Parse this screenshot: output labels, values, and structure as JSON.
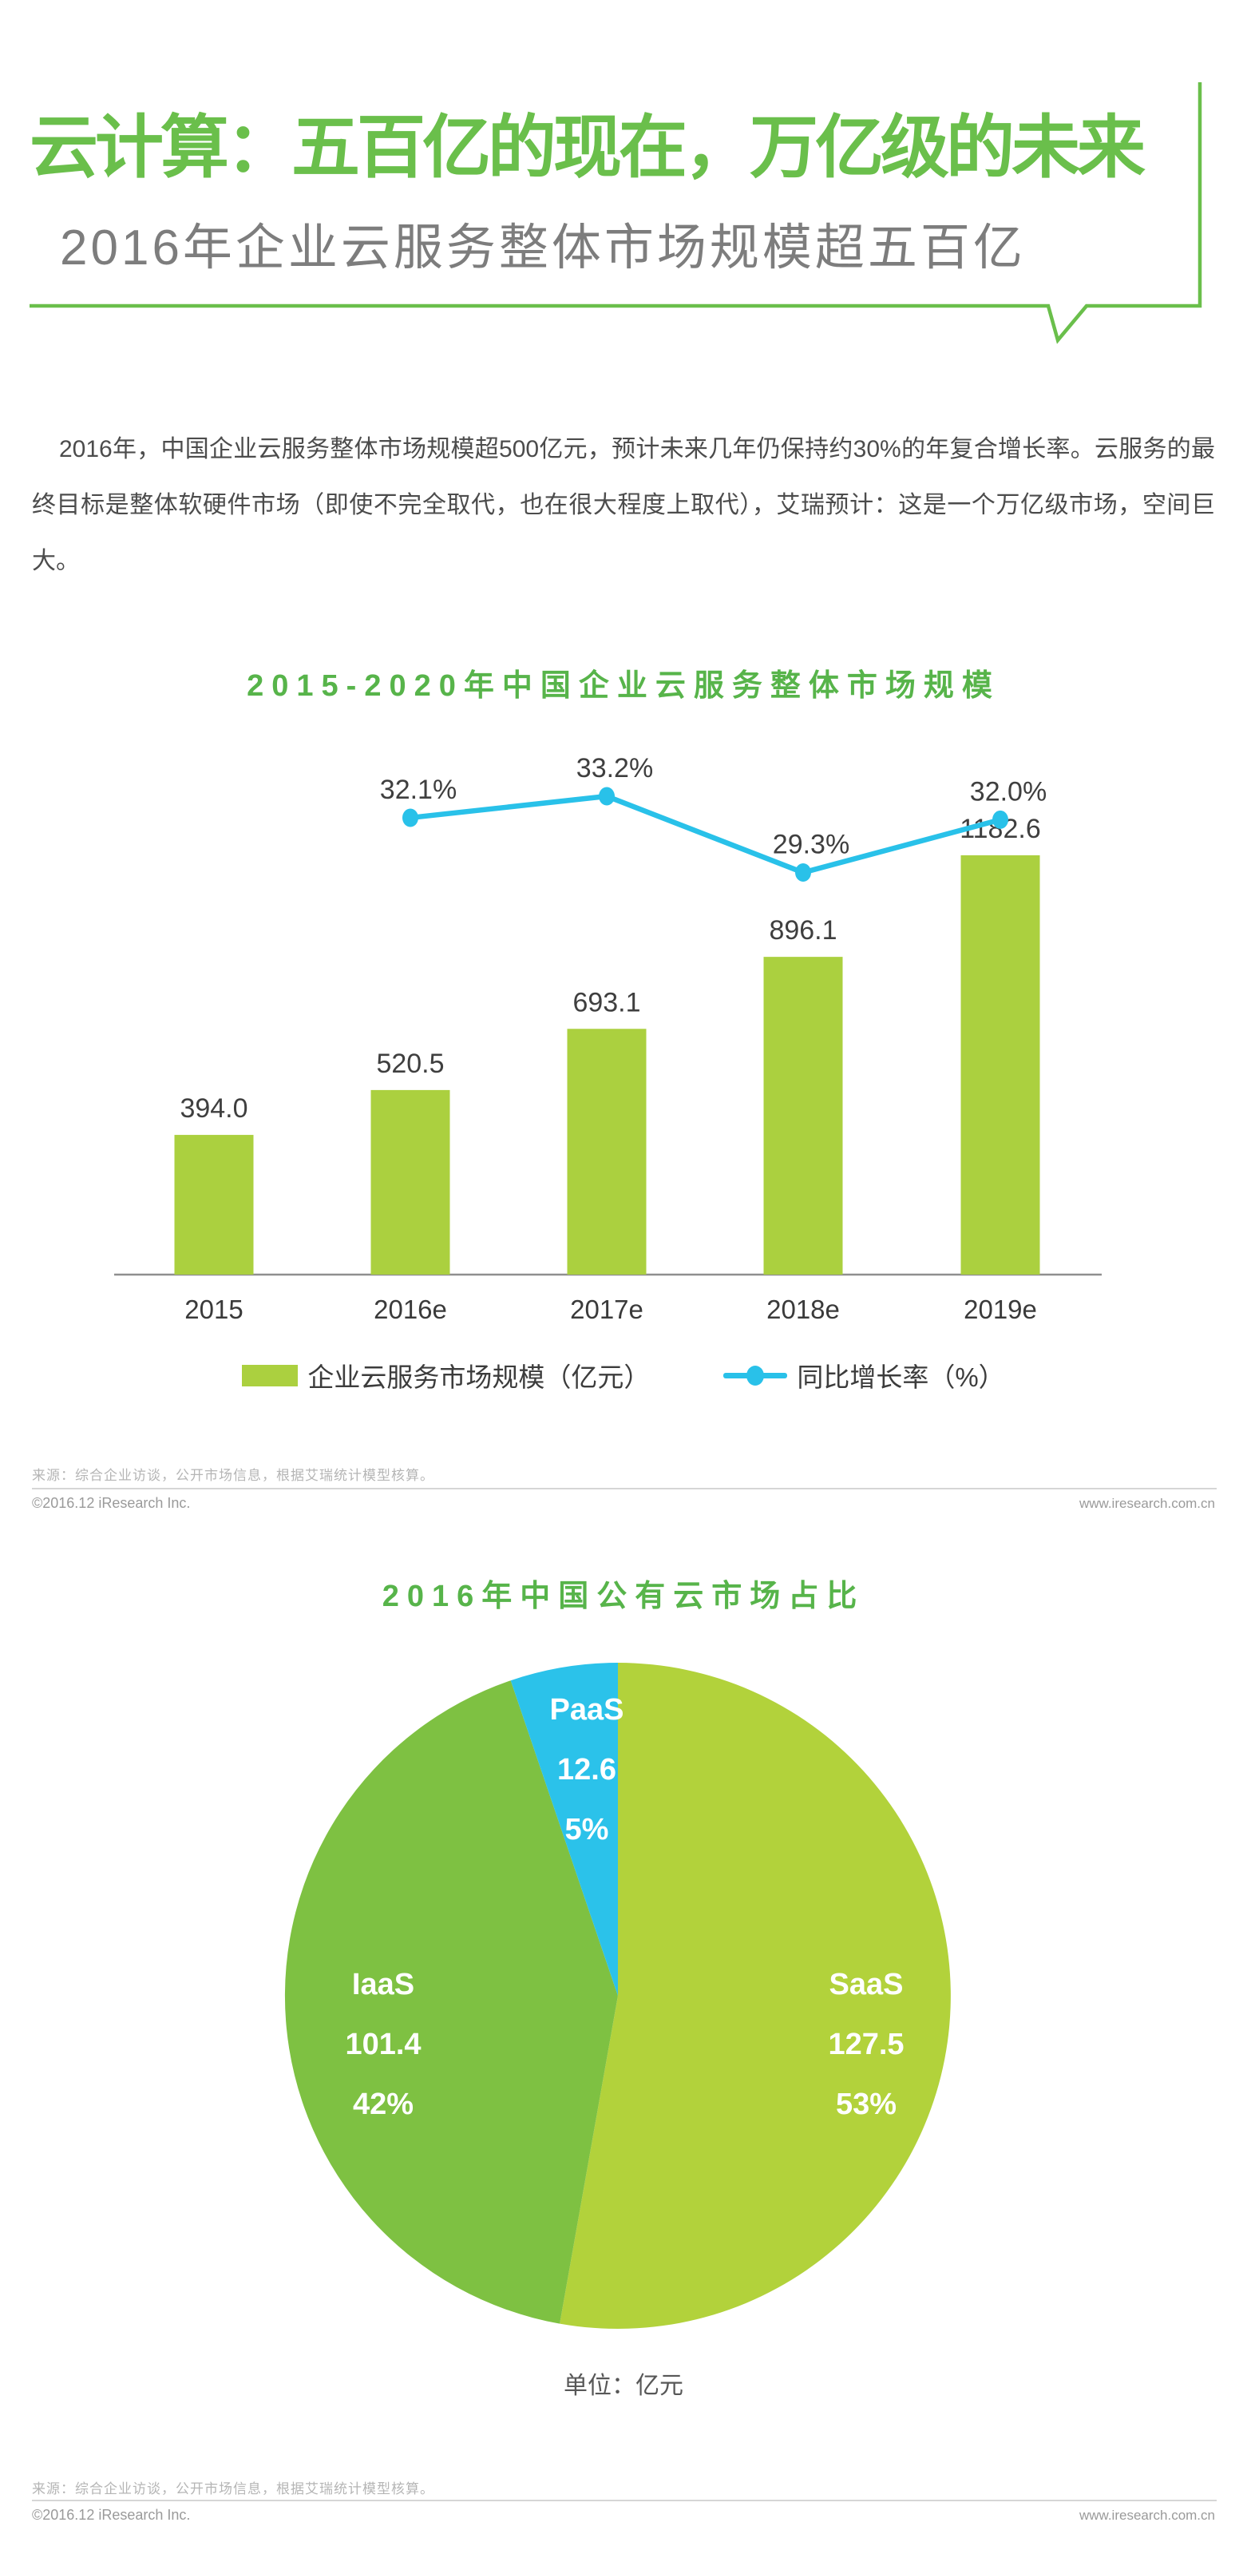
{
  "header": {
    "title": "云计算：五百亿的现在，万亿级的未来",
    "subtitle": "2016年企业云服务整体市场规模超五百亿"
  },
  "intro": {
    "text": "2016年，中国企业云服务整体市场规模超500亿元，预计未来几年仍保持约30%的年复合增长率。云服务的最终目标是整体软硬件市场（即使不完全取代，也在很大程度上取代），艾瑞预计：这是一个万亿级市场，空间巨大。"
  },
  "colors": {
    "header_green": "#6abf4b",
    "chart_title_green": "#57b44a",
    "axis_gray": "#8f8f8f"
  },
  "chart_data": [
    {
      "type": "bar",
      "title": "2015-2020年中国企业云服务整体市场规模",
      "categories": [
        "2015",
        "2016e",
        "2017e",
        "2018e",
        "2019e"
      ],
      "series": [
        {
          "name": "企业云服务市场规模（亿元）",
          "kind": "bar",
          "values": [
            394.0,
            520.5,
            693.1,
            896.1,
            1182.6
          ],
          "labels": [
            "394.0",
            "520.5",
            "693.1",
            "896.1",
            "1182.6"
          ],
          "color": "#abd03f"
        },
        {
          "name": "同比增长率（%）",
          "kind": "line",
          "values": [
            null,
            32.1,
            33.2,
            29.3,
            32.0
          ],
          "labels": [
            null,
            "32.1%",
            "33.2%",
            "29.3%",
            "32.0%"
          ],
          "color": "#29c1e9"
        }
      ],
      "ylabel": "",
      "xlabel": "",
      "grid": false,
      "legend_position": "bottom"
    },
    {
      "type": "pie",
      "title": "2016年中国公有云市场占比",
      "slices": [
        {
          "name": "SaaS",
          "value": 127.5,
          "percent": "53%",
          "color": "#b2d23b"
        },
        {
          "name": "IaaS",
          "value": 101.4,
          "percent": "42%",
          "color": "#7ec142"
        },
        {
          "name": "PaaS",
          "value": 12.6,
          "percent": "5%",
          "color": "#2bc2ea"
        }
      ],
      "start_angle": "top",
      "direction": "clockwise",
      "unit_note": "单位：亿元"
    }
  ],
  "footer": {
    "source": "来源：综合企业访谈，公开市场信息，根据艾瑞统计模型核算。",
    "copyright": "©2016.12 iResearch Inc.",
    "website": "www.iresearch.com.cn"
  }
}
